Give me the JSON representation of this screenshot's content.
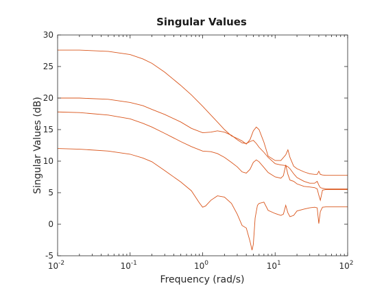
{
  "chart_data": {
    "type": "line",
    "title": "Singular Values",
    "xlabel": "Frequency (rad/s)",
    "ylabel": "Singular Values (dB)",
    "x_scale": "log",
    "xlim": [
      0.01,
      100
    ],
    "ylim": [
      -5,
      30
    ],
    "x_ticks": [
      0.01,
      0.1,
      1,
      10,
      100
    ],
    "x_tick_bases": [
      "10",
      "10",
      "10",
      "10",
      "10"
    ],
    "x_tick_exponents": [
      "-2",
      "-1",
      "0",
      "1",
      "2"
    ],
    "y_ticks": [
      -5,
      0,
      5,
      10,
      15,
      20,
      25,
      30
    ],
    "y_tick_labels": [
      "-5",
      "0",
      "5",
      "10",
      "15",
      "20",
      "25",
      "30"
    ],
    "grid": false,
    "color": "#d95319",
    "series": [
      {
        "x": [
          0.01,
          0.02,
          0.05,
          0.1,
          0.15,
          0.2,
          0.3,
          0.5,
          0.7,
          1.0,
          1.3,
          1.6,
          2.0,
          2.5,
          3.0,
          3.5,
          4.0,
          4.5,
          5.0,
          5.5,
          6.0,
          7.0,
          8.0,
          10,
          12,
          14,
          15,
          16,
          18,
          20,
          25,
          30,
          35,
          38,
          40,
          42,
          45,
          50,
          60,
          80,
          100
        ],
        "y": [
          27.6,
          27.6,
          27.4,
          26.9,
          26.2,
          25.5,
          24.1,
          22.0,
          20.5,
          18.7,
          17.3,
          16.2,
          15.0,
          14.0,
          13.6,
          13.2,
          12.7,
          13.4,
          14.8,
          15.4,
          15.0,
          13.0,
          10.8,
          10.1,
          10.1,
          11.0,
          11.8,
          10.6,
          9.2,
          8.8,
          8.3,
          8.0,
          7.9,
          7.9,
          8.4,
          7.9,
          7.8,
          7.75,
          7.75,
          7.75,
          7.75
        ]
      },
      {
        "x": [
          0.01,
          0.02,
          0.05,
          0.1,
          0.15,
          0.2,
          0.3,
          0.5,
          0.7,
          1.0,
          1.3,
          1.6,
          2.0,
          2.5,
          3.0,
          3.5,
          4.0,
          4.5,
          5.0,
          5.5,
          6.0,
          7.0,
          8.0,
          10,
          12,
          14,
          15,
          16,
          18,
          20,
          25,
          30,
          35,
          38,
          40,
          42,
          45,
          50,
          60,
          80,
          100
        ],
        "y": [
          20.0,
          20.0,
          19.8,
          19.3,
          18.8,
          18.2,
          17.4,
          16.2,
          15.2,
          14.5,
          14.6,
          14.8,
          14.6,
          14.1,
          13.4,
          12.9,
          12.8,
          13.1,
          13.3,
          12.8,
          12.2,
          11.4,
          10.6,
          9.6,
          9.4,
          9.3,
          9.1,
          8.8,
          8.0,
          7.4,
          6.8,
          6.5,
          6.5,
          6.8,
          6.2,
          5.8,
          5.7,
          5.6,
          5.6,
          5.6,
          5.6
        ]
      },
      {
        "x": [
          0.01,
          0.02,
          0.05,
          0.1,
          0.15,
          0.2,
          0.3,
          0.5,
          0.7,
          1.0,
          1.3,
          1.6,
          2.0,
          2.5,
          3.0,
          3.5,
          4.0,
          4.5,
          5.0,
          5.5,
          6.0,
          7.0,
          8.0,
          10,
          12,
          13,
          14,
          15,
          16,
          18,
          20,
          25,
          30,
          35,
          38,
          40,
          42,
          45,
          50,
          60,
          80,
          100
        ],
        "y": [
          17.8,
          17.7,
          17.3,
          16.7,
          16.0,
          15.4,
          14.4,
          13.1,
          12.3,
          11.6,
          11.5,
          11.2,
          10.6,
          9.8,
          9.1,
          8.3,
          8.1,
          8.7,
          9.8,
          10.2,
          9.9,
          9.0,
          8.2,
          7.5,
          7.3,
          7.7,
          9.4,
          7.9,
          7.0,
          6.8,
          6.4,
          6.0,
          5.9,
          5.8,
          5.6,
          4.6,
          3.8,
          5.4,
          5.5,
          5.5,
          5.5,
          5.5
        ]
      },
      {
        "x": [
          0.01,
          0.02,
          0.05,
          0.1,
          0.15,
          0.2,
          0.3,
          0.5,
          0.7,
          0.9,
          1.0,
          1.1,
          1.3,
          1.6,
          2.0,
          2.5,
          3.0,
          3.5,
          4.0,
          4.5,
          4.8,
          5.0,
          5.3,
          5.7,
          6.0,
          7.0,
          8.0,
          10,
          12,
          13,
          14,
          15,
          16,
          18,
          20,
          25,
          30,
          35,
          38,
          40,
          42,
          45,
          50,
          60,
          80,
          100
        ],
        "y": [
          12.0,
          11.9,
          11.6,
          11.1,
          10.5,
          9.9,
          8.5,
          6.7,
          5.3,
          3.4,
          2.7,
          2.9,
          3.8,
          4.5,
          4.3,
          3.3,
          1.6,
          -0.2,
          -0.6,
          -2.7,
          -4.1,
          -3.2,
          1.0,
          3.0,
          3.3,
          3.5,
          2.2,
          1.7,
          1.4,
          1.6,
          3.0,
          1.8,
          1.2,
          1.4,
          2.1,
          2.4,
          2.6,
          2.7,
          2.6,
          0.1,
          2.0,
          2.7,
          2.75,
          2.75,
          2.75,
          2.75
        ]
      }
    ]
  }
}
